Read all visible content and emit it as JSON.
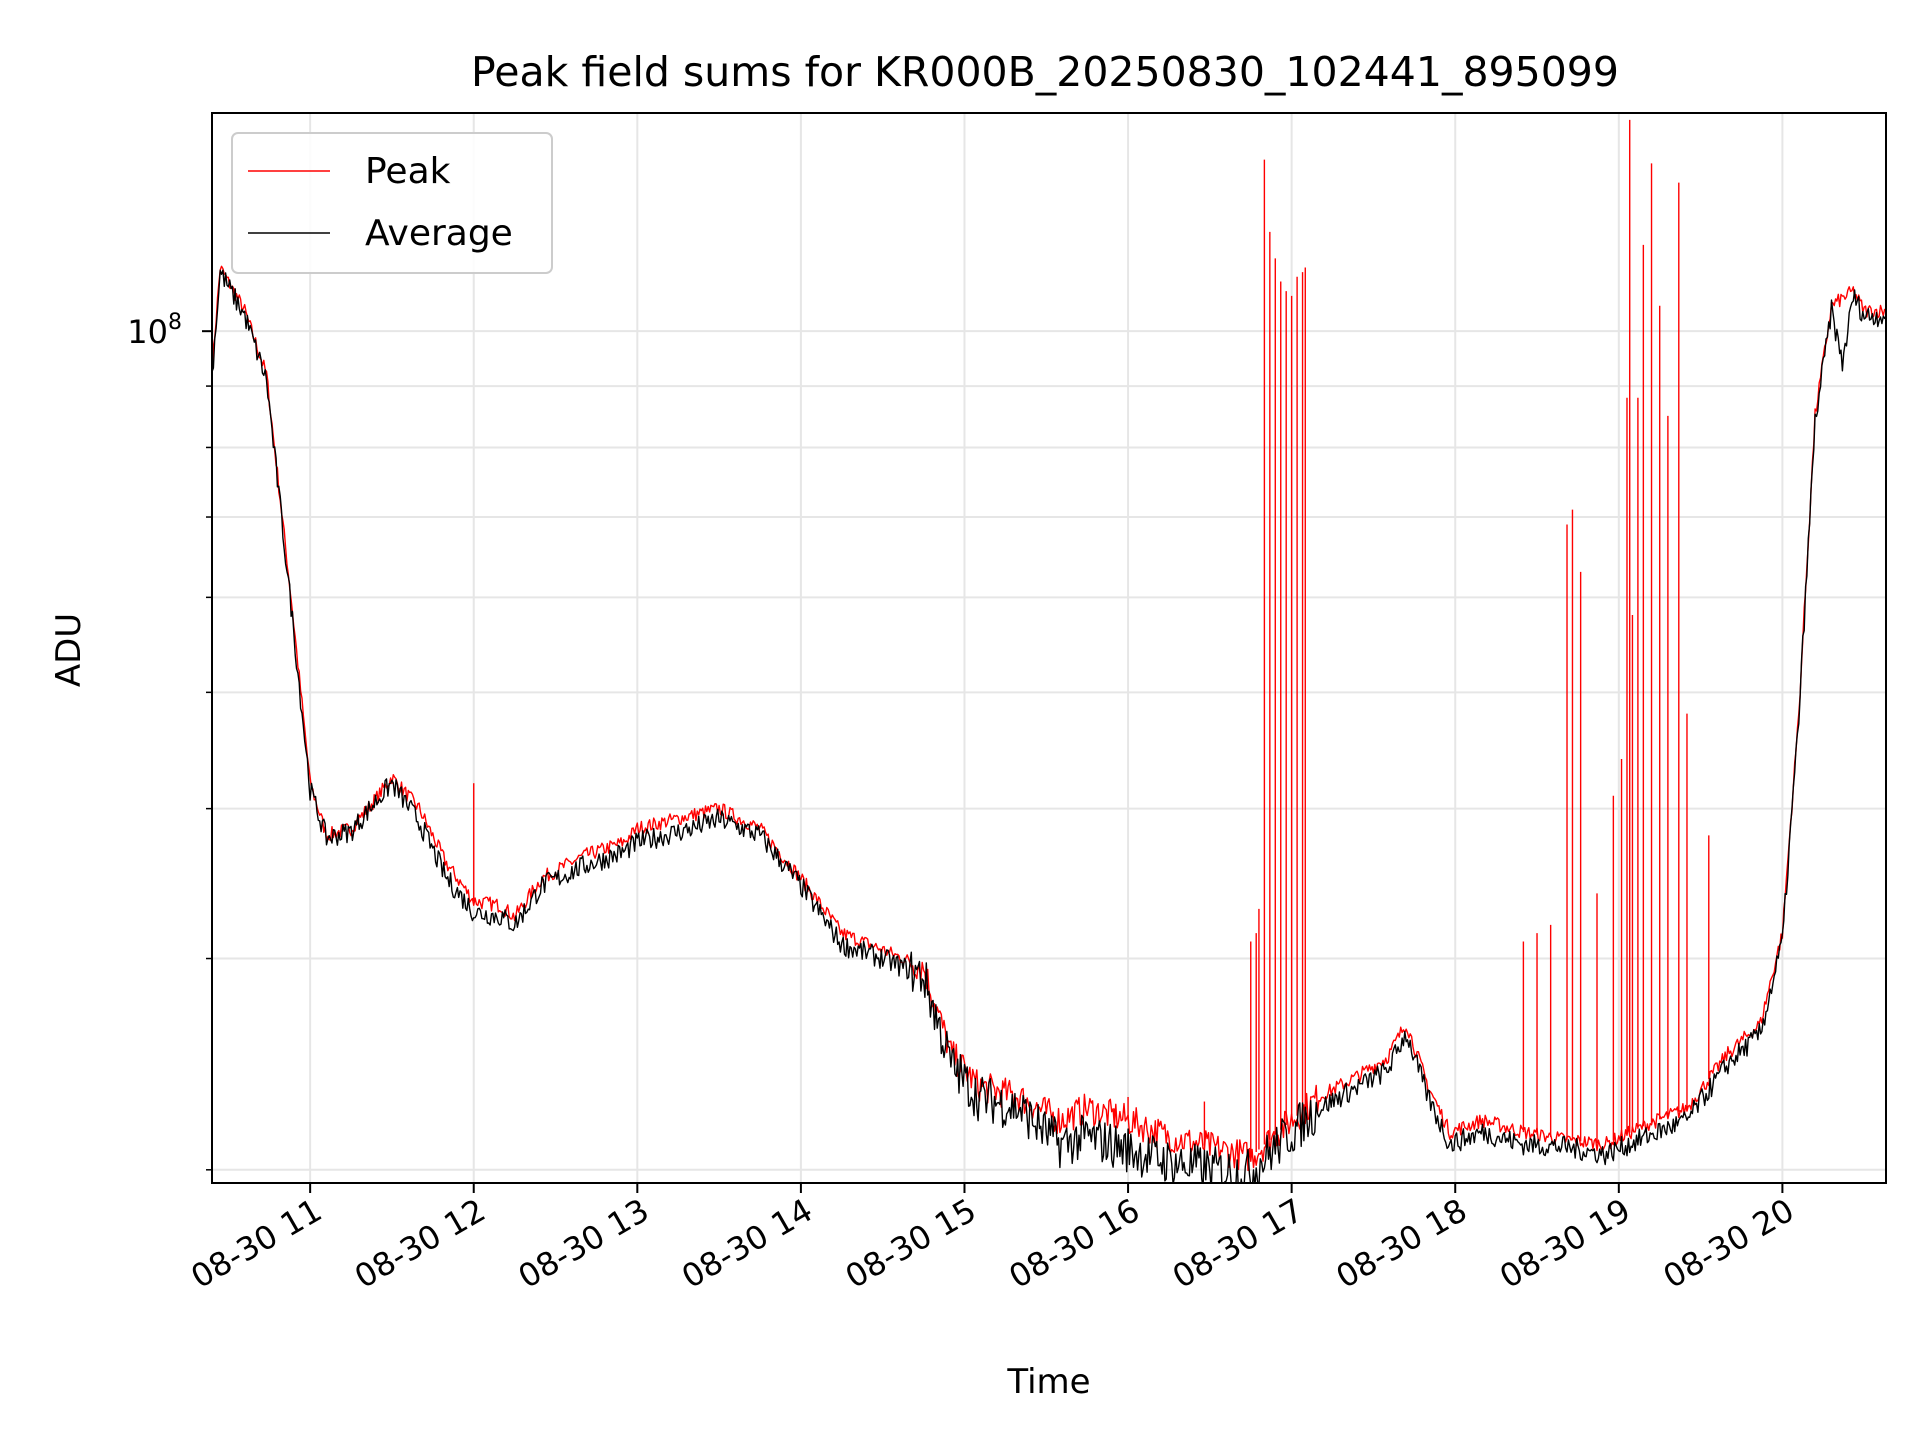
{
  "chart_data": {
    "type": "line",
    "title": "Peak field sums for KR000B_20250830_102441_895099",
    "xlabel": "Time",
    "ylabel": "ADU",
    "yscale": "log",
    "xlim": [
      "2025-08-30T10:24",
      "2025-08-30T20:38"
    ],
    "ylim": [
      19500000,
      152000000
    ],
    "x_ticks": [
      "08-30 11",
      "08-30 12",
      "08-30 13",
      "08-30 14",
      "08-30 15",
      "08-30 16",
      "08-30 17",
      "08-30 18",
      "08-30 19",
      "08-30 20"
    ],
    "y_major_ticks": [
      {
        "label": "10",
        "exponent": "8",
        "value": 100000000
      }
    ],
    "y_minor_ticks": [
      20000000,
      30000000,
      40000000,
      50000000,
      60000000,
      70000000,
      80000000,
      90000000,
      200000000
    ],
    "grid": true,
    "legend": {
      "location": "upper left"
    },
    "series": [
      {
        "name": "Peak",
        "color": "#ff0000",
        "points": [
          [
            "10:24",
            93000000
          ],
          [
            "10:27",
            113000000
          ],
          [
            "10:36",
            104000000
          ],
          [
            "10:44",
            92000000
          ],
          [
            "10:53",
            60000000
          ],
          [
            "11:00",
            42000000
          ],
          [
            "11:06",
            38000000
          ],
          [
            "11:15",
            38500000
          ],
          [
            "11:25",
            41000000
          ],
          [
            "11:30",
            42500000
          ],
          [
            "11:40",
            40000000
          ],
          [
            "11:50",
            36000000
          ],
          [
            "12:00",
            33500000
          ],
          [
            "12:10",
            33200000
          ],
          [
            "12:15",
            32500000
          ],
          [
            "12:25",
            35000000
          ],
          [
            "12:40",
            36500000
          ],
          [
            "12:55",
            37500000
          ],
          [
            "13:00",
            38500000
          ],
          [
            "13:20",
            39500000
          ],
          [
            "13:30",
            40000000
          ],
          [
            "13:45",
            38500000
          ],
          [
            "14:00",
            35000000
          ],
          [
            "14:15",
            31500000
          ],
          [
            "14:30",
            30500000
          ],
          [
            "14:45",
            29500000
          ],
          [
            "14:55",
            25000000
          ],
          [
            "15:05",
            23500000
          ],
          [
            "15:20",
            23000000
          ],
          [
            "15:35",
            22000000
          ],
          [
            "15:45",
            22500000
          ],
          [
            "16:00",
            22000000
          ],
          [
            "16:15",
            21300000
          ],
          [
            "16:30",
            20900000
          ],
          [
            "16:45",
            20500000
          ],
          [
            "16:55",
            21500000
          ],
          [
            "17:10",
            23000000
          ],
          [
            "17:25",
            24000000
          ],
          [
            "17:35",
            24800000
          ],
          [
            "17:42",
            26500000
          ],
          [
            "17:50",
            23500000
          ],
          [
            "17:58",
            21500000
          ],
          [
            "18:10",
            22000000
          ],
          [
            "18:25",
            21500000
          ],
          [
            "18:40",
            21200000
          ],
          [
            "18:55",
            21000000
          ],
          [
            "19:10",
            21800000
          ],
          [
            "19:25",
            22500000
          ],
          [
            "19:40",
            25000000
          ],
          [
            "19:52",
            26500000
          ],
          [
            "20:00",
            31500000
          ],
          [
            "20:06",
            48000000
          ],
          [
            "20:12",
            85000000
          ],
          [
            "20:18",
            105000000
          ],
          [
            "20:26",
            108000000
          ],
          [
            "20:30",
            104000000
          ],
          [
            "20:38",
            104000000
          ]
        ],
        "spikes": [
          [
            "12:00",
            42000000
          ],
          [
            "15:55",
            22500000
          ],
          [
            "16:00",
            23000000
          ],
          [
            "16:28",
            22800000
          ],
          [
            "16:45",
            31000000
          ],
          [
            "16:47",
            31500000
          ],
          [
            "16:48",
            33000000
          ],
          [
            "16:50",
            139000000
          ],
          [
            "16:52",
            121000000
          ],
          [
            "16:54",
            115000000
          ],
          [
            "16:56",
            110000000
          ],
          [
            "16:58",
            108000000
          ],
          [
            "17:00",
            107000000
          ],
          [
            "17:02",
            111000000
          ],
          [
            "17:04",
            112000000
          ],
          [
            "17:05",
            113000000
          ],
          [
            "18:25",
            31000000
          ],
          [
            "18:30",
            31500000
          ],
          [
            "18:35",
            32000000
          ],
          [
            "18:41",
            69000000
          ],
          [
            "18:43",
            71000000
          ],
          [
            "18:46",
            63000000
          ],
          [
            "18:52",
            34000000
          ],
          [
            "18:58",
            41000000
          ],
          [
            "19:01",
            44000000
          ],
          [
            "19:03",
            88000000
          ],
          [
            "19:04",
            150000000
          ],
          [
            "19:05",
            58000000
          ],
          [
            "19:07",
            88000000
          ],
          [
            "19:09",
            118000000
          ],
          [
            "19:12",
            138000000
          ],
          [
            "19:15",
            105000000
          ],
          [
            "19:18",
            85000000
          ],
          [
            "19:22",
            133000000
          ],
          [
            "19:25",
            48000000
          ],
          [
            "19:33",
            38000000
          ]
        ]
      },
      {
        "name": "Average",
        "color": "#000000",
        "points": [
          [
            "10:24",
            92000000
          ],
          [
            "10:27",
            112000000
          ],
          [
            "10:36",
            103000000
          ],
          [
            "10:44",
            91000000
          ],
          [
            "10:53",
            59000000
          ],
          [
            "11:00",
            41500000
          ],
          [
            "11:06",
            37800000
          ],
          [
            "11:15",
            38300000
          ],
          [
            "11:25",
            40800000
          ],
          [
            "11:30",
            42000000
          ],
          [
            "11:40",
            39000000
          ],
          [
            "11:50",
            35000000
          ],
          [
            "12:00",
            32800000
          ],
          [
            "12:10",
            32500000
          ],
          [
            "12:15",
            32000000
          ],
          [
            "12:25",
            34500000
          ],
          [
            "12:40",
            35800000
          ],
          [
            "12:55",
            36800000
          ],
          [
            "13:00",
            37500000
          ],
          [
            "13:20",
            38500000
          ],
          [
            "13:30",
            39200000
          ],
          [
            "13:45",
            38000000
          ],
          [
            "14:00",
            34500000
          ],
          [
            "14:15",
            30800000
          ],
          [
            "14:30",
            30000000
          ],
          [
            "14:45",
            29000000
          ],
          [
            "14:55",
            24500000
          ],
          [
            "15:05",
            23000000
          ],
          [
            "15:20",
            22500000
          ],
          [
            "15:35",
            21000000
          ],
          [
            "15:45",
            21300000
          ],
          [
            "16:00",
            20800000
          ],
          [
            "16:15",
            20300000
          ],
          [
            "16:30",
            20000000
          ],
          [
            "16:45",
            19900000
          ],
          [
            "16:55",
            21000000
          ],
          [
            "17:10",
            22500000
          ],
          [
            "17:25",
            23500000
          ],
          [
            "17:35",
            24200000
          ],
          [
            "17:42",
            26000000
          ],
          [
            "17:50",
            23000000
          ],
          [
            "17:58",
            21000000
          ],
          [
            "18:10",
            21500000
          ],
          [
            "18:25",
            21000000
          ],
          [
            "18:40",
            20900000
          ],
          [
            "18:55",
            20600000
          ],
          [
            "19:10",
            21300000
          ],
          [
            "19:25",
            22000000
          ],
          [
            "19:40",
            24500000
          ],
          [
            "19:52",
            26000000
          ],
          [
            "20:00",
            31000000
          ],
          [
            "20:06",
            47500000
          ],
          [
            "20:12",
            84000000
          ],
          [
            "20:18",
            104000000
          ],
          [
            "20:22",
            94000000
          ],
          [
            "20:26",
            107000000
          ],
          [
            "20:30",
            103000000
          ],
          [
            "20:38",
            103000000
          ]
        ]
      }
    ]
  }
}
